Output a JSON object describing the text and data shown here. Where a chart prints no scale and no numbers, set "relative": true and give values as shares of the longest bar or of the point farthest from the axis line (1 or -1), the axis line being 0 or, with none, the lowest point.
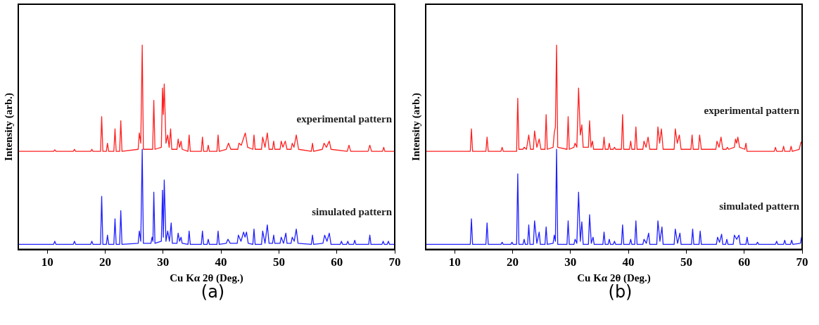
{
  "chart_data": [
    {
      "type": "line",
      "xlabel": "Cu Kα 2θ (Deg.)",
      "ylabel": "Intensity (arb.)",
      "xlim": [
        5,
        70
      ],
      "xticks": [
        10,
        20,
        30,
        40,
        50,
        60,
        70
      ],
      "relative": true,
      "tick_labels": "x",
      "grid": false,
      "legend": false,
      "marker": "none",
      "line_style": "solid",
      "annotations": [
        "(a)"
      ],
      "series": [
        {
          "name": "experimental pattern",
          "color": "#ff2020",
          "x": [
            5,
            11.1,
            11.3,
            11.5,
            14.5,
            14.7,
            14.9,
            17.5,
            17.7,
            17.9,
            19.2,
            19.4,
            19.6,
            20.2,
            20.4,
            20.6,
            21.5,
            21.7,
            21.9,
            22.5,
            22.7,
            22.9,
            25.7,
            25.9,
            26.15,
            26.4,
            26.6,
            28.2,
            28.4,
            28.6,
            29.7,
            29.9,
            30.05,
            30.2,
            30.5,
            30.8,
            31.05,
            31.3,
            31.5,
            32.4,
            32.6,
            32.85,
            33.1,
            33.3,
            34.3,
            34.5,
            34.7,
            36.6,
            36.8,
            37.0,
            37.6,
            37.8,
            38.0,
            39.3,
            39.5,
            39.7,
            40.9,
            41.3,
            41.7,
            42.9,
            43.1,
            43.5,
            44.2,
            44.6,
            45.5,
            45.7,
            45.9,
            47.0,
            47.2,
            47.6,
            48.0,
            48.3,
            48.9,
            49.1,
            49.3,
            50.2,
            50.4,
            50.7,
            51.1,
            51.4,
            52.1,
            52.3,
            52.6,
            53.0,
            53.4,
            55.6,
            55.8,
            56.0,
            57.5,
            57.8,
            58.2,
            58.7,
            59.0,
            61.8,
            62.1,
            62.4,
            65.4,
            65.7,
            66.0,
            67.9,
            68.1,
            68.3,
            70
          ],
          "values": [
            0.48,
            0.48,
            0.488,
            0.48,
            0.48,
            0.49,
            0.48,
            0.48,
            0.49,
            0.48,
            0.48,
            0.65,
            0.48,
            0.48,
            0.52,
            0.48,
            0.48,
            0.59,
            0.48,
            0.48,
            0.63,
            0.48,
            0.49,
            0.57,
            0.52,
            1.0,
            0.49,
            0.49,
            0.73,
            0.49,
            0.5,
            0.79,
            0.66,
            0.81,
            0.52,
            0.56,
            0.5,
            0.59,
            0.49,
            0.49,
            0.54,
            0.5,
            0.53,
            0.49,
            0.48,
            0.56,
            0.48,
            0.48,
            0.55,
            0.48,
            0.48,
            0.51,
            0.48,
            0.48,
            0.56,
            0.48,
            0.49,
            0.52,
            0.49,
            0.49,
            0.52,
            0.51,
            0.57,
            0.5,
            0.49,
            0.56,
            0.49,
            0.49,
            0.55,
            0.5,
            0.57,
            0.49,
            0.49,
            0.53,
            0.49,
            0.49,
            0.53,
            0.5,
            0.53,
            0.49,
            0.49,
            0.52,
            0.5,
            0.56,
            0.49,
            0.48,
            0.52,
            0.48,
            0.49,
            0.52,
            0.5,
            0.53,
            0.49,
            0.48,
            0.51,
            0.48,
            0.48,
            0.51,
            0.48,
            0.48,
            0.5,
            0.48,
            0.48
          ]
        },
        {
          "name": "simulated pattern",
          "color": "#2020ff",
          "x": [
            5,
            11.1,
            11.3,
            11.5,
            14.5,
            14.7,
            14.9,
            17.5,
            17.7,
            17.9,
            19.2,
            19.4,
            19.6,
            20.2,
            20.4,
            20.6,
            21.5,
            21.7,
            21.9,
            22.5,
            22.7,
            22.9,
            25.7,
            25.9,
            26.15,
            26.4,
            26.6,
            27.9,
            28.1,
            28.25,
            28.4,
            28.6,
            29.7,
            29.9,
            30.05,
            30.2,
            30.5,
            30.8,
            31.1,
            31.4,
            31.6,
            32.4,
            32.6,
            32.85,
            33.1,
            33.3,
            34.3,
            34.5,
            34.7,
            36.6,
            36.8,
            37.0,
            37.6,
            37.8,
            38.0,
            39.3,
            39.5,
            39.7,
            40.9,
            41.2,
            41.6,
            42.8,
            43.0,
            43.45,
            43.9,
            44.15,
            44.4,
            44.7,
            45.5,
            45.7,
            45.9,
            47.0,
            47.2,
            47.6,
            48.0,
            48.3,
            48.9,
            49.1,
            49.3,
            50.2,
            50.4,
            50.8,
            51.2,
            51.4,
            52.1,
            52.3,
            52.65,
            53.0,
            53.3,
            55.6,
            55.8,
            56.0,
            57.6,
            57.9,
            58.3,
            58.7,
            59.0,
            60.6,
            60.8,
            61.0,
            61.7,
            61.9,
            62.1,
            62.9,
            63.1,
            63.3,
            65.5,
            65.7,
            65.9,
            67.8,
            68.0,
            68.2,
            68.7,
            68.9,
            69.1,
            70
          ],
          "values": [
            0.025,
            0.025,
            0.04,
            0.025,
            0.025,
            0.04,
            0.025,
            0.025,
            0.04,
            0.025,
            0.025,
            0.26,
            0.025,
            0.025,
            0.07,
            0.025,
            0.025,
            0.15,
            0.025,
            0.025,
            0.19,
            0.025,
            0.03,
            0.09,
            0.04,
            0.49,
            0.03,
            0.03,
            0.06,
            0.04,
            0.28,
            0.03,
            0.04,
            0.29,
            0.06,
            0.34,
            0.04,
            0.09,
            0.04,
            0.13,
            0.03,
            0.03,
            0.08,
            0.04,
            0.06,
            0.03,
            0.025,
            0.09,
            0.025,
            0.025,
            0.09,
            0.025,
            0.025,
            0.05,
            0.025,
            0.025,
            0.09,
            0.025,
            0.03,
            0.05,
            0.03,
            0.03,
            0.07,
            0.04,
            0.085,
            0.06,
            0.085,
            0.03,
            0.025,
            0.1,
            0.025,
            0.025,
            0.09,
            0.03,
            0.12,
            0.03,
            0.03,
            0.07,
            0.03,
            0.03,
            0.06,
            0.03,
            0.08,
            0.03,
            0.03,
            0.06,
            0.04,
            0.1,
            0.03,
            0.025,
            0.07,
            0.025,
            0.03,
            0.07,
            0.04,
            0.08,
            0.025,
            0.025,
            0.04,
            0.025,
            0.025,
            0.04,
            0.025,
            0.025,
            0.045,
            0.025,
            0.025,
            0.07,
            0.025,
            0.025,
            0.04,
            0.025,
            0.025,
            0.04,
            0.025,
            0.025
          ]
        }
      ]
    },
    {
      "type": "line",
      "xlabel": "Cu Kα 2θ (Deg.)",
      "ylabel": "Intensity (arb.)",
      "xlim": [
        5,
        70
      ],
      "xticks": [
        10,
        20,
        30,
        40,
        50,
        60,
        70
      ],
      "relative": true,
      "tick_labels": "x",
      "grid": false,
      "legend": false,
      "marker": "none",
      "line_style": "solid",
      "annotations": [
        "(b)"
      ],
      "series": [
        {
          "name": "experimental pattern",
          "color": "#ff2020",
          "x": [
            5,
            12.7,
            12.9,
            13.1,
            15.4,
            15.6,
            15.8,
            18.0,
            18.2,
            18.4,
            20.7,
            20.9,
            21.1,
            21.8,
            22.0,
            22.4,
            22.8,
            23.1,
            23.6,
            23.8,
            24.2,
            24.6,
            24.9,
            25.6,
            25.8,
            26.0,
            27.0,
            27.2,
            27.4,
            27.6,
            27.8,
            29.4,
            29.6,
            29.8,
            30.6,
            30.8,
            31.1,
            31.4,
            31.7,
            31.96,
            32.2,
            33.1,
            33.3,
            33.55,
            33.8,
            34.0,
            35.6,
            35.8,
            36.0,
            36.5,
            36.7,
            36.9,
            37.4,
            37.6,
            37.8,
            38.8,
            39.0,
            39.2,
            40.2,
            40.4,
            40.6,
            41.1,
            41.3,
            41.5,
            42.5,
            42.7,
            43.05,
            43.4,
            43.7,
            44.9,
            45.1,
            45.4,
            45.7,
            46.0,
            47.9,
            48.1,
            48.45,
            48.8,
            49.1,
            50.8,
            51.0,
            51.2,
            52.1,
            52.3,
            52.6,
            55.1,
            55.3,
            55.65,
            56.0,
            56.3,
            56.9,
            57.1,
            57.3,
            58.3,
            58.5,
            58.7,
            58.9,
            59.2,
            60.1,
            60.3,
            60.5,
            65.2,
            65.4,
            65.6,
            66.6,
            66.8,
            67.0,
            67.9,
            68.1,
            68.3,
            69.5,
            69.8,
            70
          ],
          "values": [
            0.48,
            0.48,
            0.59,
            0.48,
            0.48,
            0.55,
            0.48,
            0.48,
            0.5,
            0.48,
            0.48,
            0.74,
            0.49,
            0.49,
            0.5,
            0.49,
            0.56,
            0.49,
            0.49,
            0.58,
            0.5,
            0.54,
            0.49,
            0.49,
            0.66,
            0.49,
            0.5,
            0.57,
            0.6,
            1.0,
            0.5,
            0.49,
            0.65,
            0.49,
            0.5,
            0.52,
            0.5,
            0.79,
            0.56,
            0.61,
            0.5,
            0.5,
            0.63,
            0.5,
            0.53,
            0.49,
            0.49,
            0.55,
            0.49,
            0.49,
            0.52,
            0.49,
            0.49,
            0.5,
            0.49,
            0.49,
            0.66,
            0.49,
            0.49,
            0.53,
            0.49,
            0.49,
            0.6,
            0.49,
            0.49,
            0.53,
            0.5,
            0.55,
            0.49,
            0.49,
            0.6,
            0.52,
            0.59,
            0.49,
            0.49,
            0.59,
            0.52,
            0.56,
            0.49,
            0.49,
            0.56,
            0.49,
            0.49,
            0.56,
            0.49,
            0.49,
            0.53,
            0.5,
            0.55,
            0.49,
            0.49,
            0.5,
            0.49,
            0.5,
            0.54,
            0.52,
            0.55,
            0.5,
            0.49,
            0.52,
            0.48,
            0.48,
            0.5,
            0.48,
            0.48,
            0.505,
            0.48,
            0.48,
            0.505,
            0.48,
            0.49,
            0.525,
            0.52
          ]
        },
        {
          "name": "simulated pattern",
          "color": "#2020ff",
          "x": [
            5,
            12.7,
            12.9,
            13.1,
            15.4,
            15.6,
            15.8,
            18.0,
            18.2,
            18.4,
            19.7,
            19.9,
            20.1,
            20.7,
            20.9,
            21.1,
            21.8,
            22.0,
            22.2,
            22.6,
            22.8,
            23.0,
            23.6,
            23.8,
            24.2,
            24.6,
            24.8,
            25.6,
            25.8,
            26.0,
            27.0,
            27.2,
            27.4,
            27.6,
            27.8,
            29.4,
            29.6,
            29.8,
            30.6,
            30.8,
            31.1,
            31.4,
            31.7,
            31.96,
            32.2,
            33.1,
            33.3,
            33.6,
            33.9,
            34.1,
            35.6,
            35.8,
            36.0,
            36.5,
            36.7,
            36.9,
            37.4,
            37.6,
            37.8,
            38.8,
            39.0,
            39.2,
            40.2,
            40.4,
            40.6,
            41.1,
            41.3,
            41.5,
            42.5,
            42.7,
            43.1,
            43.5,
            43.7,
            44.9,
            45.1,
            45.45,
            45.8,
            46.0,
            47.9,
            48.1,
            48.5,
            48.9,
            49.1,
            50.9,
            51.1,
            51.3,
            52.2,
            52.4,
            52.6,
            55.2,
            55.4,
            55.75,
            56.1,
            56.3,
            56.8,
            57.0,
            57.2,
            58.1,
            58.3,
            58.7,
            59.1,
            59.3,
            60.3,
            60.5,
            60.7,
            62.1,
            62.3,
            62.5,
            65.4,
            65.6,
            65.8,
            66.8,
            67.0,
            67.2,
            68.0,
            68.2,
            68.4,
            69.7,
            69.9,
            70
          ],
          "values": [
            0.025,
            0.025,
            0.15,
            0.025,
            0.025,
            0.13,
            0.025,
            0.025,
            0.035,
            0.025,
            0.025,
            0.035,
            0.025,
            0.025,
            0.37,
            0.025,
            0.025,
            0.05,
            0.025,
            0.025,
            0.12,
            0.025,
            0.025,
            0.14,
            0.03,
            0.085,
            0.025,
            0.025,
            0.11,
            0.025,
            0.03,
            0.07,
            0.04,
            0.49,
            0.025,
            0.025,
            0.14,
            0.025,
            0.025,
            0.05,
            0.03,
            0.28,
            0.04,
            0.135,
            0.025,
            0.025,
            0.17,
            0.03,
            0.06,
            0.025,
            0.025,
            0.085,
            0.025,
            0.025,
            0.05,
            0.025,
            0.025,
            0.04,
            0.025,
            0.025,
            0.12,
            0.025,
            0.025,
            0.05,
            0.025,
            0.025,
            0.14,
            0.025,
            0.025,
            0.05,
            0.03,
            0.08,
            0.025,
            0.025,
            0.14,
            0.04,
            0.11,
            0.025,
            0.025,
            0.1,
            0.03,
            0.08,
            0.025,
            0.025,
            0.1,
            0.025,
            0.025,
            0.09,
            0.025,
            0.025,
            0.06,
            0.035,
            0.075,
            0.025,
            0.025,
            0.05,
            0.025,
            0.025,
            0.07,
            0.05,
            0.07,
            0.025,
            0.025,
            0.06,
            0.025,
            0.025,
            0.035,
            0.025,
            0.025,
            0.04,
            0.025,
            0.025,
            0.045,
            0.025,
            0.025,
            0.045,
            0.025,
            0.03,
            0.06,
            0.05
          ]
        }
      ]
    }
  ]
}
